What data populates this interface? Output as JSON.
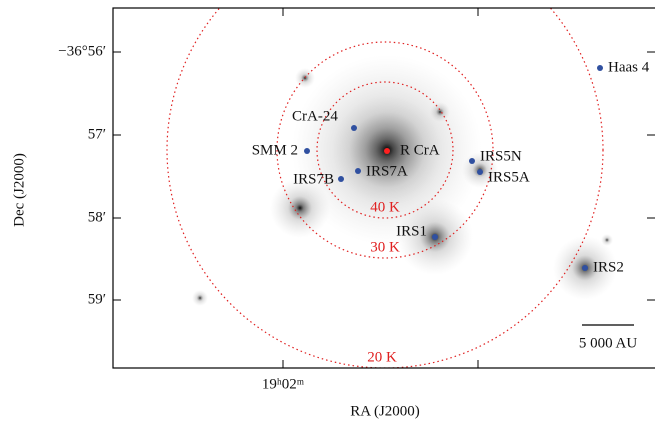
{
  "axes": {
    "x_label": "RA (J2000)",
    "y_label": "Dec (J2000)",
    "x_ticks": [
      "19ʰ02ᵐ"
    ],
    "y_ticks": [
      "−36°56′",
      "57′",
      "58′",
      "59′"
    ]
  },
  "sources": [
    "Haas 4",
    "CrA-24",
    "R CrA",
    "SMM 2",
    "IRS5N",
    "IRS5A",
    "IRS7B",
    "IRS7A",
    "IRS1",
    "IRS2"
  ],
  "contours": [
    "40 K",
    "30 K",
    "20 K"
  ],
  "scale_bar": "5 000 AU"
}
